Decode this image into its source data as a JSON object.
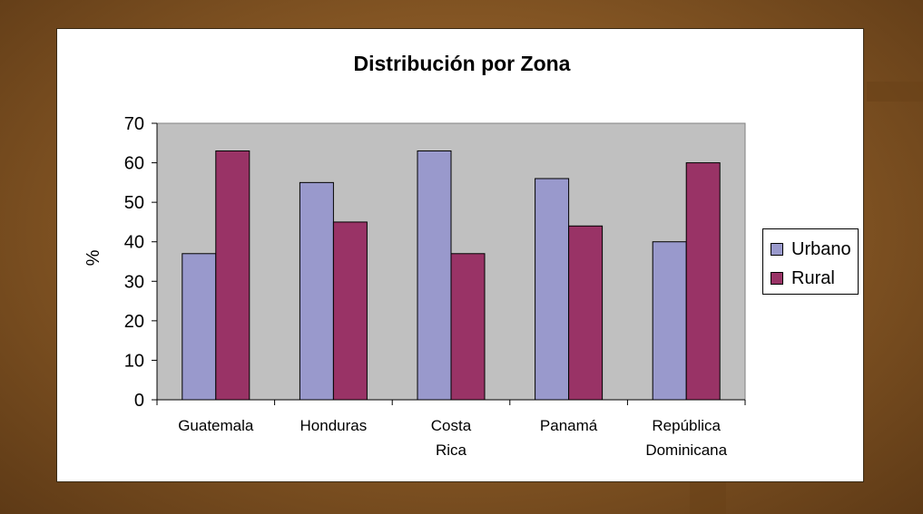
{
  "chart_data": {
    "type": "bar",
    "title": "Distribución por Zona",
    "ylabel": "%",
    "xlabel": "",
    "ylim": [
      0,
      70
    ],
    "yticks": [
      0,
      10,
      20,
      30,
      40,
      50,
      60,
      70
    ],
    "categories": [
      "Guatemala",
      "Honduras",
      "Costa Rica",
      "Panamá",
      "República Dominicana"
    ],
    "series": [
      {
        "name": "Urbano",
        "color": "#9999cc",
        "values": [
          37,
          55,
          63,
          56,
          40
        ]
      },
      {
        "name": "Rural",
        "color": "#993366",
        "values": [
          63,
          45,
          37,
          44,
          60
        ]
      }
    ],
    "plot_background": "#c0c0c0",
    "grid": false,
    "legend_position": "right"
  }
}
